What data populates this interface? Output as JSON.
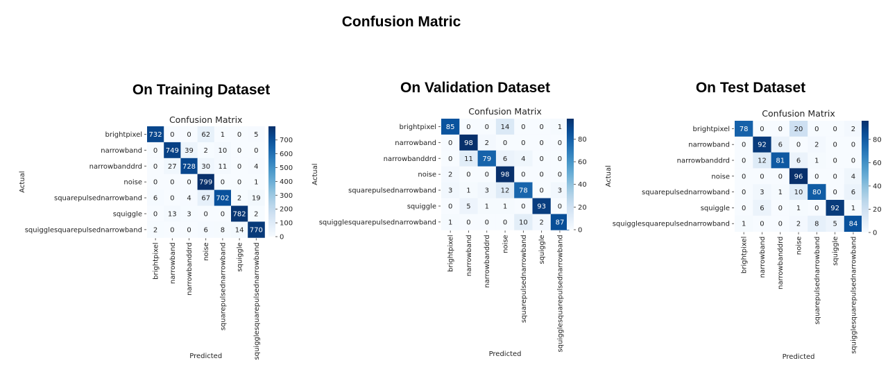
{
  "page": {
    "title": "Confusion Matric",
    "panel_headings": [
      "On Training Dataset",
      "On Validation Dataset",
      "On Test Dataset"
    ]
  },
  "colors": {
    "low": "#f7fbff",
    "high": "#08306b",
    "text_dark": "#222222",
    "text_light": "#ffffff"
  },
  "chart_data": [
    {
      "type": "heatmap",
      "title": "Confusion Matrix",
      "xlabel": "Predicted",
      "ylabel": "Actual",
      "classes": [
        "brightpixel",
        "narrowband",
        "narrowbanddrd",
        "noise",
        "squarepulsednarrowband",
        "squiggle",
        "squigglesquarepulsednarrowband"
      ],
      "colorbar_ticks": [
        0,
        100,
        200,
        300,
        400,
        500,
        600,
        700
      ],
      "vmax": 799,
      "values": [
        [
          732,
          0,
          0,
          62,
          1,
          0,
          5
        ],
        [
          0,
          749,
          39,
          2,
          10,
          0,
          0
        ],
        [
          0,
          27,
          728,
          30,
          11,
          0,
          4
        ],
        [
          0,
          0,
          0,
          799,
          0,
          0,
          1
        ],
        [
          6,
          0,
          4,
          67,
          702,
          2,
          19
        ],
        [
          0,
          13,
          3,
          0,
          0,
          782,
          2
        ],
        [
          2,
          0,
          0,
          6,
          8,
          14,
          770
        ]
      ]
    },
    {
      "type": "heatmap",
      "title": "Confusion Matrix",
      "xlabel": "Predicted",
      "ylabel": "Actual",
      "classes": [
        "brightpixel",
        "narrowband",
        "narrowbanddrd",
        "noise",
        "squarepulsednarrowband",
        "squiggle",
        "squigglesquarepulsednarrowband"
      ],
      "colorbar_ticks": [
        0,
        20,
        40,
        60,
        80
      ],
      "vmax": 98,
      "values": [
        [
          85,
          0,
          0,
          14,
          0,
          0,
          1
        ],
        [
          0,
          98,
          2,
          0,
          0,
          0,
          0
        ],
        [
          0,
          11,
          79,
          6,
          4,
          0,
          0
        ],
        [
          2,
          0,
          0,
          98,
          0,
          0,
          0
        ],
        [
          3,
          1,
          3,
          12,
          78,
          0,
          3
        ],
        [
          0,
          5,
          1,
          1,
          0,
          93,
          0
        ],
        [
          1,
          0,
          0,
          0,
          10,
          2,
          87
        ]
      ]
    },
    {
      "type": "heatmap",
      "title": "Confusion Matrix",
      "xlabel": "Predicted",
      "ylabel": "Actual",
      "classes": [
        "brightpixel",
        "narrowband",
        "narrowbanddrd",
        "noise",
        "squarepulsednarrowband",
        "squiggle",
        "squigglesquarepulsednarrowband"
      ],
      "colorbar_ticks": [
        0,
        20,
        40,
        60,
        80
      ],
      "vmax": 96,
      "values": [
        [
          78,
          0,
          0,
          20,
          0,
          0,
          2
        ],
        [
          0,
          92,
          6,
          0,
          2,
          0,
          0
        ],
        [
          0,
          12,
          81,
          6,
          1,
          0,
          0
        ],
        [
          0,
          0,
          0,
          96,
          0,
          0,
          4
        ],
        [
          0,
          3,
          1,
          10,
          80,
          0,
          6
        ],
        [
          0,
          6,
          0,
          1,
          0,
          92,
          1
        ],
        [
          1,
          0,
          0,
          2,
          8,
          5,
          84
        ]
      ]
    }
  ]
}
